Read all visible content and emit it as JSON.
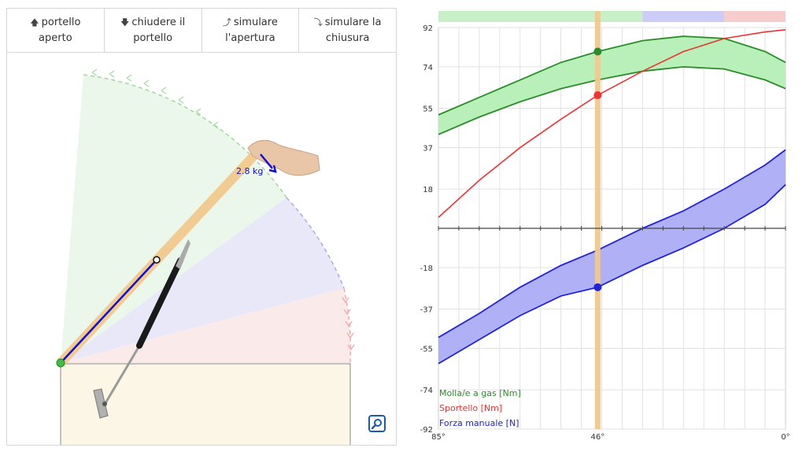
{
  "toolbar": {
    "open": {
      "icon": "arrow-up-icon",
      "line1": "portello",
      "line2": "aperto"
    },
    "close": {
      "icon": "arrow-down-icon",
      "line1": "chiudere il",
      "line2": "portello"
    },
    "sim_open": {
      "icon": "curved-arrow-up-icon",
      "line1": "simulare",
      "line2": "l'apertura"
    },
    "sim_close": {
      "icon": "curved-arrow-down-icon",
      "line1": "simulare la",
      "line2": "chiusura"
    }
  },
  "scene": {
    "force_label": "2.8 kg",
    "door_angle_deg": 46
  },
  "colors": {
    "gas": "#2a8c2a",
    "door": "#ee3333",
    "manual": "#2222dd",
    "cursor": "#f0c890",
    "door_panel": "#f2cb93"
  },
  "chart_data": {
    "type": "area",
    "x_axis": {
      "ticks": [
        "85°",
        "46°",
        "0°"
      ],
      "range": [
        85,
        0
      ]
    },
    "y_axis": {
      "ticks": [
        "92",
        "74",
        "55",
        "37",
        "18",
        "-18",
        "-37",
        "-55",
        "-74",
        "-92"
      ],
      "range": [
        -92,
        92
      ]
    },
    "cursor_x": 46,
    "top_band": [
      {
        "from": 85,
        "to": 35,
        "color": "#c8f0c8"
      },
      {
        "from": 35,
        "to": 15,
        "color": "#ccccf6"
      },
      {
        "from": 15,
        "to": 0,
        "color": "#f6cccc"
      }
    ],
    "series": [
      {
        "name": "Molla/e a gas [Nm]",
        "type": "band",
        "x": [
          85,
          75,
          65,
          55,
          46,
          35,
          25,
          15,
          5,
          0
        ],
        "upper": [
          52,
          60,
          68,
          76,
          81,
          86,
          88,
          87,
          81,
          76
        ],
        "lower": [
          43,
          51,
          58,
          64,
          68,
          72,
          74,
          73,
          68,
          64
        ],
        "marker": 81
      },
      {
        "name": "Sportello [Nm]",
        "type": "line",
        "x": [
          85,
          75,
          65,
          55,
          46,
          35,
          25,
          15,
          5,
          0
        ],
        "values": [
          5,
          22,
          37,
          50,
          61,
          72,
          81,
          87,
          90,
          91
        ],
        "marker": 61
      },
      {
        "name": "Forza manuale [N]",
        "type": "band",
        "x": [
          85,
          75,
          65,
          55,
          46,
          35,
          25,
          15,
          5,
          0
        ],
        "upper": [
          -50,
          -39,
          -27,
          -17,
          -10,
          0,
          8,
          18,
          29,
          36
        ],
        "lower": [
          -62,
          -51,
          -40,
          -31,
          -27,
          -17,
          -9,
          0,
          11,
          20
        ],
        "marker": -27
      }
    ]
  }
}
